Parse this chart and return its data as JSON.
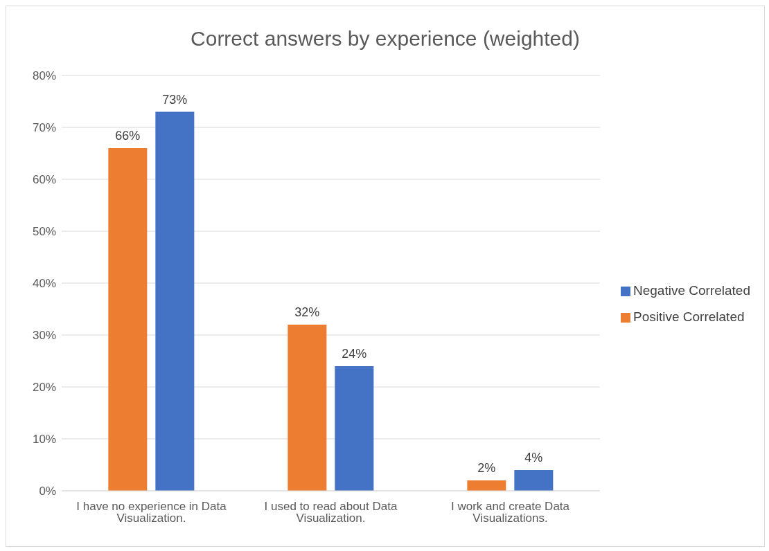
{
  "chart_data": {
    "type": "bar",
    "title": "Correct answers by experience (weighted)",
    "categories": [
      "I have no experience in Data Visualization.",
      "I used to read about Data Visualization.",
      "I work and create Data Visualizations."
    ],
    "series": [
      {
        "name": "Positive Correlated",
        "color": "#ed7d31",
        "values": [
          66,
          32,
          2
        ],
        "value_labels": [
          "66%",
          "32%",
          "2%"
        ]
      },
      {
        "name": "Negative Correlated",
        "color": "#4472c4",
        "values": [
          73,
          24,
          4
        ],
        "value_labels": [
          "73%",
          "24%",
          "4%"
        ]
      }
    ],
    "ylim": [
      0,
      80
    ],
    "yticks": [
      {
        "value": 0,
        "label": "0%"
      },
      {
        "value": 10,
        "label": "10%"
      },
      {
        "value": 20,
        "label": "20%"
      },
      {
        "value": 30,
        "label": "30%"
      },
      {
        "value": 40,
        "label": "40%"
      },
      {
        "value": 50,
        "label": "50%"
      },
      {
        "value": 60,
        "label": "60%"
      },
      {
        "value": 70,
        "label": "70%"
      },
      {
        "value": 80,
        "label": "80%"
      }
    ],
    "grid": "y",
    "legend": "right"
  }
}
